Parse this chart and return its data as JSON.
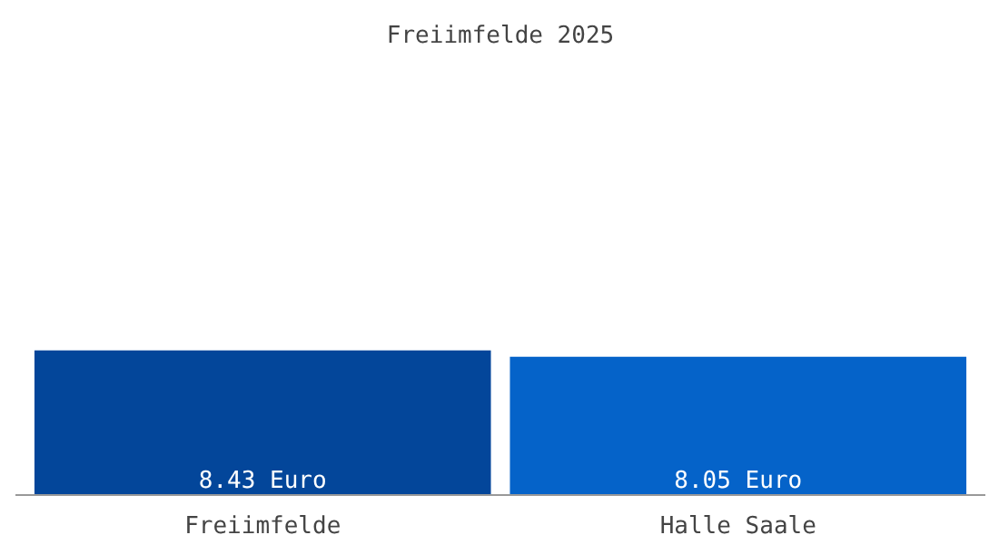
{
  "chart_data": {
    "type": "bar",
    "title": "Freiimfelde 2025",
    "categories": [
      "Freiimfelde",
      "Halle Saale"
    ],
    "values": [
      8.43,
      8.05
    ],
    "colors": [
      "#03469a",
      "#0563c9"
    ],
    "value_labels": [
      "8.43 Euro",
      "8.05 Euro"
    ],
    "relative": false,
    "grid": false
  }
}
